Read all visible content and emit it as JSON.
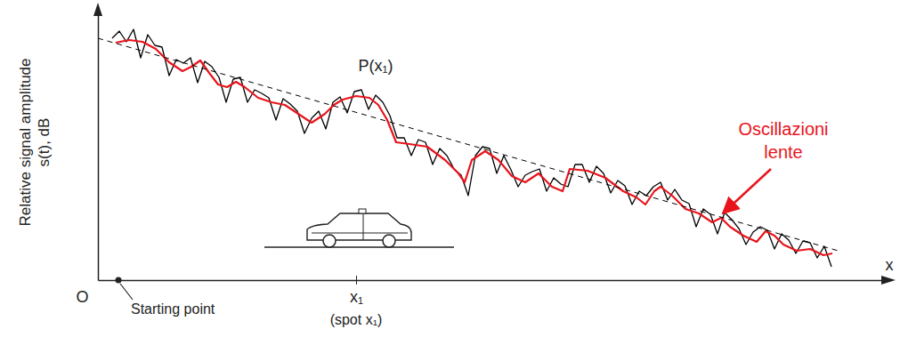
{
  "chart_data": {
    "type": "line",
    "y_label": [
      "Relative signal amplitude",
      "s(t), dB"
    ],
    "x_label": "x",
    "xlim": [
      0,
      890
    ],
    "ylim": [
      0,
      305
    ],
    "xticks": [
      {
        "value": 0,
        "label": "O"
      },
      {
        "value": 290,
        "label": "x₁"
      }
    ],
    "yticks": [],
    "tick_labels": "x",
    "start_x": 23,
    "annotations": {
      "point": "P(x₁)",
      "start": "Starting point",
      "spot": "(spot x₁)",
      "slow": "Oscillazioni lente"
    },
    "series": [
      {
        "color": "#000000",
        "line_style": "solid",
        "x": [
          16,
          24,
          32,
          40,
          48,
          56,
          64,
          72,
          80,
          88,
          96,
          104,
          112,
          120,
          128,
          136,
          144,
          152,
          160,
          168,
          176,
          184,
          192,
          200,
          208,
          216,
          224,
          232,
          240,
          248,
          256,
          264,
          272,
          280,
          288,
          296,
          304,
          312,
          320,
          328,
          336,
          344,
          352,
          360,
          368,
          376,
          384,
          392,
          400,
          408,
          416,
          424,
          432,
          440,
          448,
          456,
          464,
          472,
          480,
          488,
          496,
          504,
          512,
          520,
          528,
          536,
          544,
          552,
          560,
          568,
          576,
          584,
          592,
          600,
          608,
          616,
          624,
          632,
          640,
          648,
          656,
          664,
          672,
          680,
          688,
          696,
          704,
          712,
          720,
          728,
          736,
          744,
          752,
          760,
          768,
          776,
          784,
          792,
          800,
          808,
          816,
          824
        ],
        "values": [
          272,
          280,
          268,
          282,
          250,
          276,
          264,
          262,
          230,
          248,
          244,
          250,
          222,
          246,
          240,
          228,
          200,
          226,
          228,
          200,
          214,
          210,
          205,
          180,
          204,
          198,
          190,
          165,
          182,
          190,
          170,
          200,
          206,
          188,
          212,
          214,
          192,
          208,
          200,
          185,
          160,
          160,
          140,
          158,
          155,
          130,
          148,
          140,
          125,
          118,
          95,
          140,
          150,
          148,
          120,
          140,
          124,
          105,
          118,
          122,
          125,
          100,
          115,
          108,
          105,
          130,
          130,
          110,
          128,
          120,
          98,
          112,
          106,
          85,
          100,
          95,
          105,
          110,
          90,
          102,
          90,
          86,
          60,
          80,
          74,
          52,
          76,
          68,
          58,
          40,
          54,
          60,
          56,
          35,
          52,
          45,
          30,
          44,
          42,
          25,
          38,
          15
        ]
      },
      {
        "color": "#e8141c",
        "line_style": "solid",
        "x": [
          20,
          35,
          50,
          65,
          80,
          95,
          105,
          115,
          125,
          135,
          145,
          155,
          165,
          180,
          195,
          210,
          225,
          240,
          255,
          265,
          275,
          290,
          305,
          315,
          325,
          335,
          350,
          370,
          390,
          405,
          412,
          420,
          435,
          450,
          465,
          480,
          495,
          510,
          522,
          530,
          550,
          570,
          590,
          605,
          615,
          625,
          632,
          645,
          660,
          675,
          690,
          700,
          710,
          725,
          740,
          750,
          760,
          770,
          785,
          800,
          815,
          825
        ],
        "values": [
          267,
          270,
          268,
          260,
          245,
          235,
          240,
          247,
          233,
          220,
          217,
          223,
          217,
          205,
          200,
          197,
          187,
          177,
          187,
          197,
          203,
          207,
          205,
          197,
          180,
          155,
          153,
          150,
          135,
          120,
          110,
          135,
          145,
          135,
          117,
          110,
          120,
          105,
          100,
          125,
          123,
          115,
          100,
          93,
          85,
          100,
          105,
          95,
          80,
          75,
          65,
          70,
          60,
          50,
          43,
          55,
          50,
          40,
          33,
          35,
          28,
          30
        ]
      },
      {
        "color": "#000000",
        "line_style": "dashed",
        "x": [
          0,
          835
        ],
        "values": [
          272,
          32
        ]
      }
    ]
  }
}
